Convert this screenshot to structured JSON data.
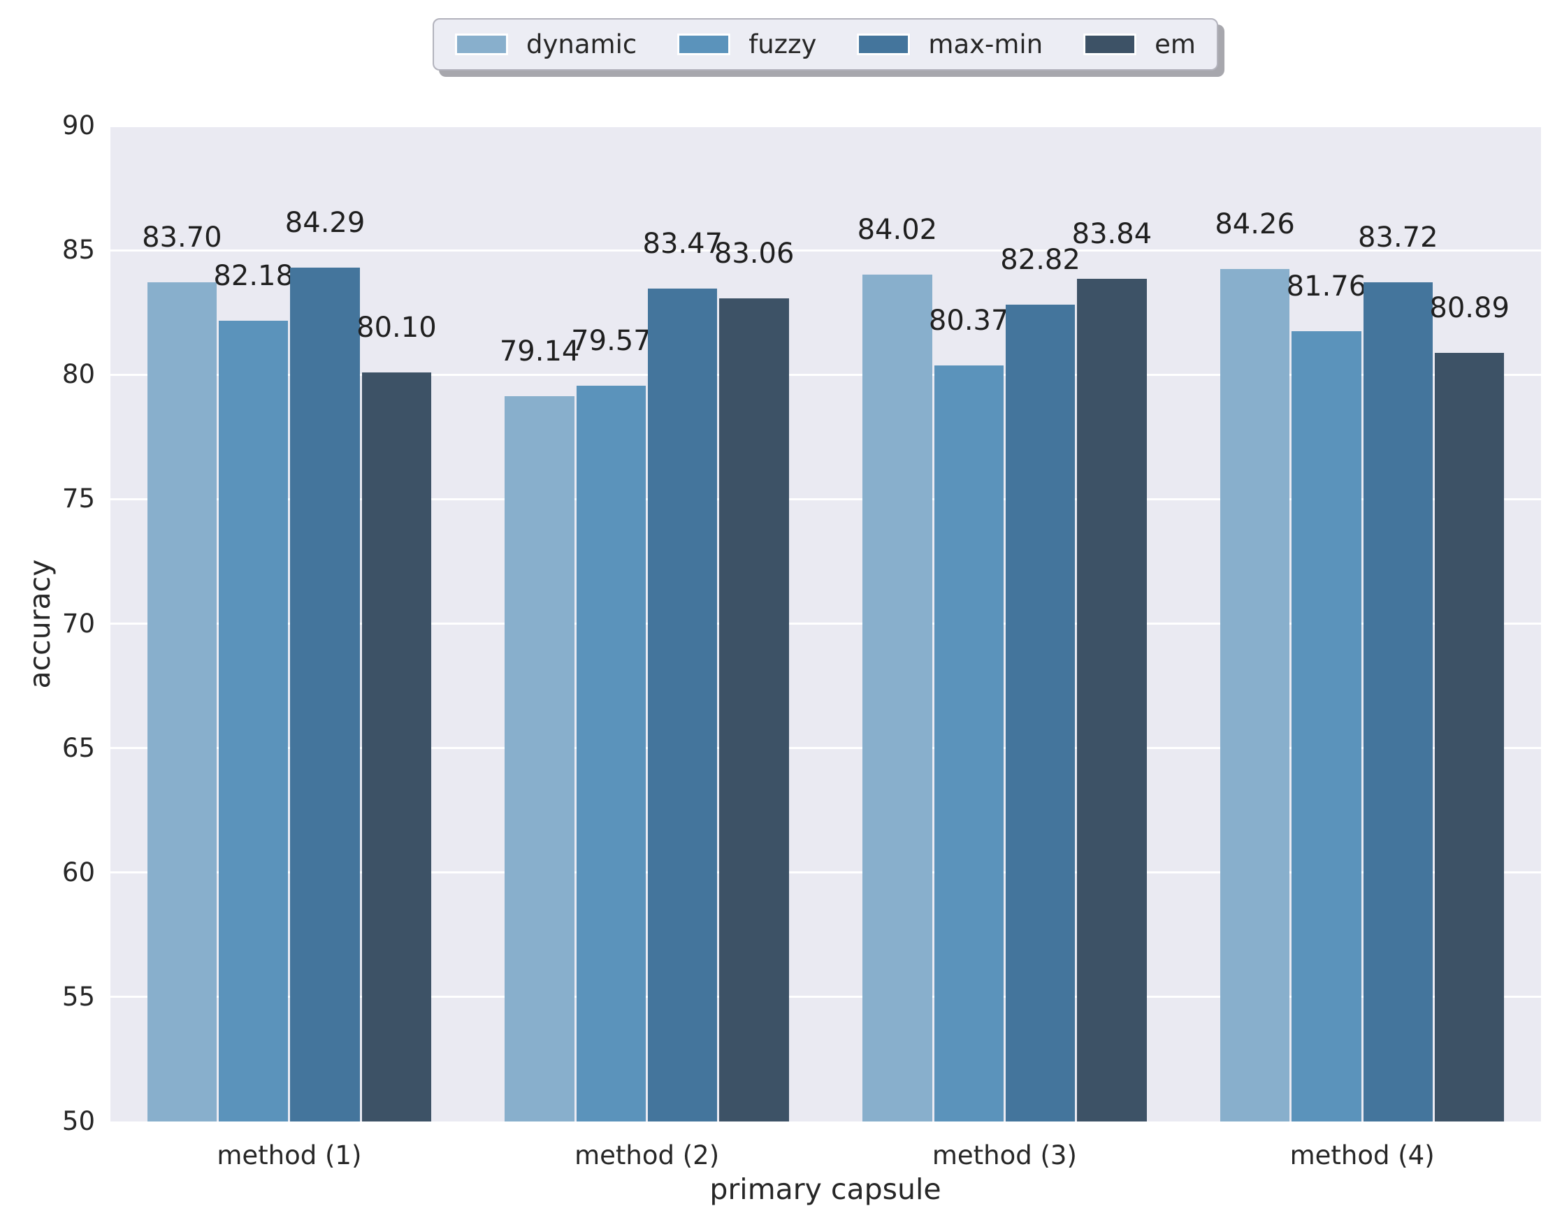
{
  "chart_data": {
    "type": "bar",
    "title": "",
    "xlabel": "primary capsule",
    "ylabel": "accuracy",
    "categories": [
      "method (1)",
      "method (2)",
      "method (3)",
      "method (4)"
    ],
    "series": [
      {
        "name": "dynamic",
        "color": "#88afcc",
        "values": [
          83.7,
          79.14,
          84.02,
          84.26
        ],
        "labels": [
          "83.70",
          "79.14",
          "84.02",
          "84.26"
        ]
      },
      {
        "name": "fuzzy",
        "color": "#5b93bb",
        "values": [
          82.18,
          79.57,
          80.37,
          81.76
        ],
        "labels": [
          "82.18",
          "79.57",
          "80.37",
          "81.76"
        ]
      },
      {
        "name": "max-min",
        "color": "#44759c",
        "values": [
          84.29,
          83.47,
          82.82,
          83.72
        ],
        "labels": [
          "84.29",
          "83.47",
          "82.82",
          "83.72"
        ]
      },
      {
        "name": "em",
        "color": "#3d5266",
        "values": [
          80.1,
          83.06,
          83.84,
          80.89
        ],
        "labels": [
          "80.10",
          "83.06",
          "83.84",
          "80.89"
        ]
      }
    ],
    "ylim": [
      50,
      90
    ],
    "yticks": [
      50,
      55,
      60,
      65,
      70,
      75,
      80,
      85,
      90
    ],
    "grid": true,
    "legend_position": "top-center",
    "bar_label_decimals": 2
  },
  "style": {
    "plot_background": "#eaeaf2",
    "grid_color": "#ffffff",
    "text_color": "#262626",
    "bar_label_color": "#1f1f1f",
    "legend_background": "#ecedf4",
    "legend_border": "#b2b2bc"
  }
}
